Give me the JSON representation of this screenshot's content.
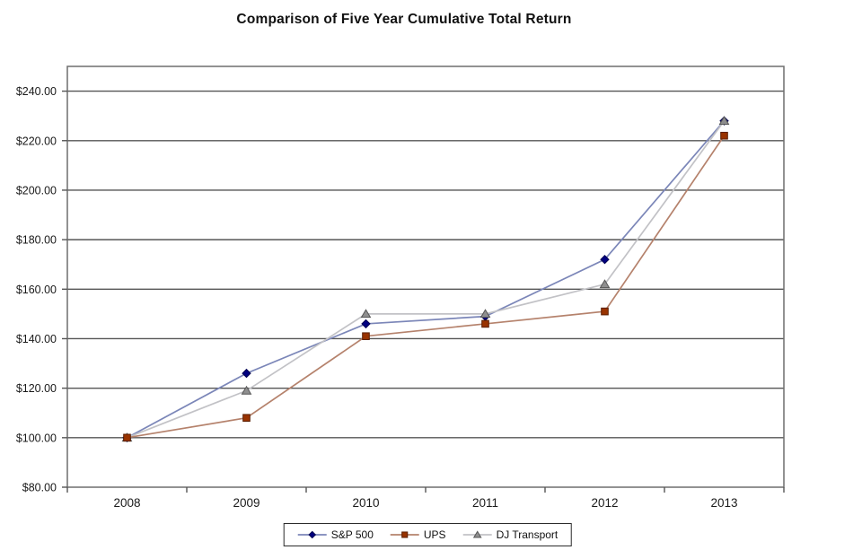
{
  "page": {
    "background": "#ffffff"
  },
  "chart_data": {
    "type": "line",
    "title": "Comparison of Five Year Cumulative Total Return",
    "categories": [
      "2008",
      "2009",
      "2010",
      "2011",
      "2012",
      "2013"
    ],
    "series": [
      {
        "name": "S&P 500",
        "values": [
          100,
          126,
          146,
          149,
          172,
          228
        ],
        "line_color": "#7b86b8",
        "marker": "diamond",
        "marker_color": "#000080",
        "marker_edge": "#000050"
      },
      {
        "name": "UPS",
        "values": [
          100,
          108,
          141,
          146,
          151,
          222
        ],
        "line_color": "#b5826c",
        "marker": "square",
        "marker_color": "#993300",
        "marker_edge": "#5a1e00"
      },
      {
        "name": "DJ Transport",
        "values": [
          100,
          119,
          150,
          150,
          162,
          228
        ],
        "line_color": "#c2c2c6",
        "marker": "triangle",
        "marker_color": "#8f8f8f",
        "marker_edge": "#565656"
      }
    ],
    "xlabel": "",
    "ylabel": "",
    "ylim": [
      80,
      250
    ],
    "yticks": [
      240,
      220,
      200,
      180,
      160,
      140,
      120,
      100,
      80
    ],
    "y_tick_labels": [
      "$240.00",
      "$220.00",
      "$200.00",
      "$180.00",
      "$160.00",
      "$140.00",
      "$120.00",
      "$100.00",
      "$80.00"
    ],
    "grid": "horizontal",
    "legend_position": "bottom-center",
    "grid_color": "#555555",
    "frame_color": "#6e6e6e",
    "tick_color": "#555555",
    "text_color": "#1a1a1a"
  }
}
